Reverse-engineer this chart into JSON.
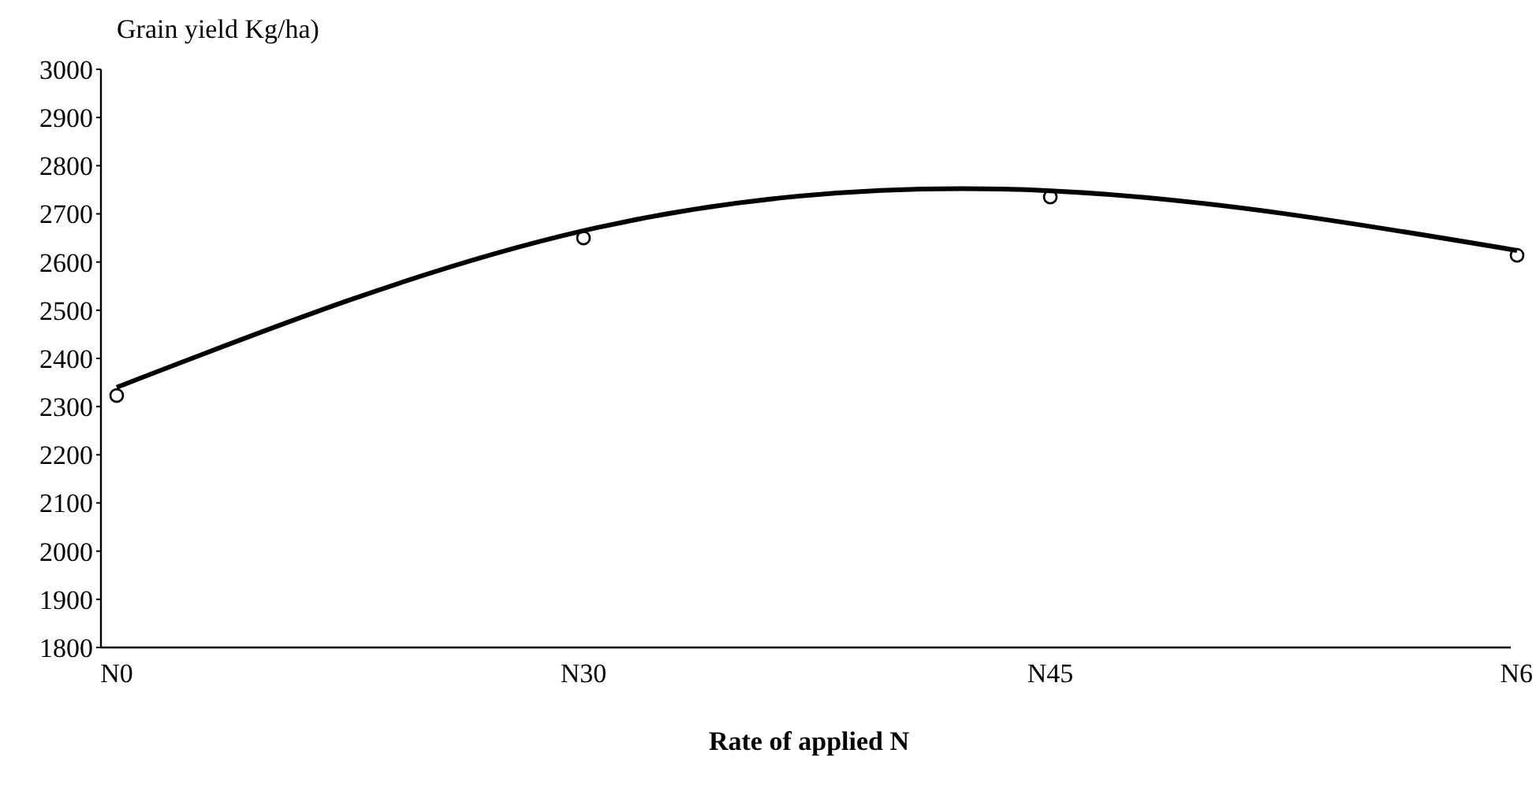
{
  "chart_data": {
    "type": "scatter",
    "ylabel": "Grain yield Kg/ha)",
    "xlabel": "Rate of applied N",
    "categories": [
      "N0",
      "N30",
      "N45",
      "N6"
    ],
    "ylim": [
      1800,
      3000
    ],
    "yticks": [
      1800,
      1900,
      2000,
      2100,
      2200,
      2300,
      2400,
      2500,
      2600,
      2700,
      2800,
      2900,
      3000
    ],
    "series": [
      {
        "color": "#000000",
        "marker": "circle",
        "values": [
          2323,
          2650,
          2735,
          2614
        ]
      },
      {
        "type": "line",
        "color": "#000000",
        "marker": "none",
        "line_style": "solid",
        "values": [
          2340,
          2665,
          2748,
          2624
        ]
      }
    ]
  }
}
